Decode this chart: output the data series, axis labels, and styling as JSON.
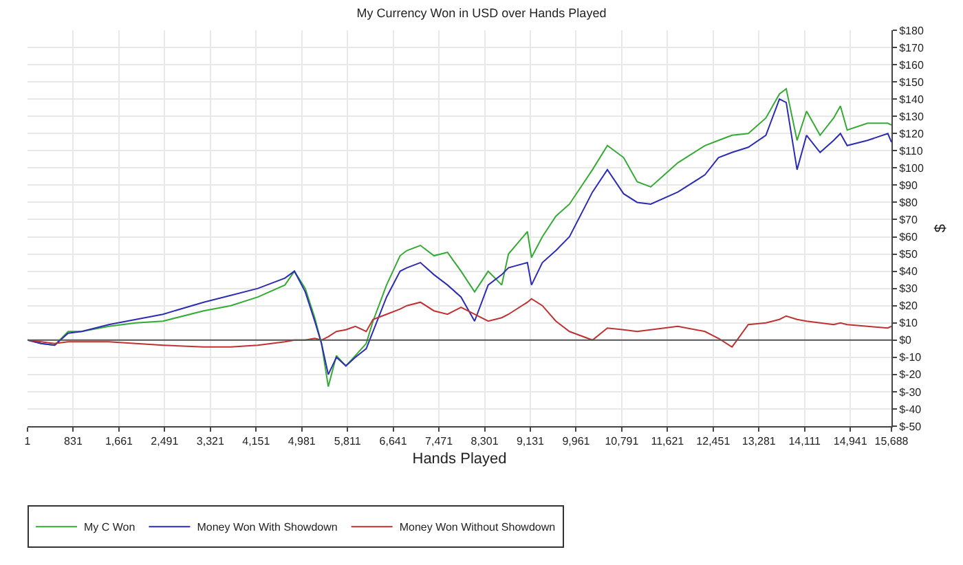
{
  "chart_data": {
    "type": "line",
    "title": "My Currency Won in USD over Hands Played",
    "xlabel": "Hands Played",
    "ylabel": "$",
    "x": [
      1,
      247,
      493,
      739,
      985,
      1477,
      1969,
      2461,
      3199,
      3691,
      4183,
      4675,
      4847,
      5044,
      5216,
      5339,
      5462,
      5610,
      5782,
      5954,
      6151,
      6274,
      6520,
      6766,
      6889,
      7135,
      7381,
      7627,
      7873,
      8119,
      8365,
      8611,
      8734,
      9078,
      9152,
      9349,
      9595,
      9841,
      10259,
      10530,
      10825,
      11071,
      11317,
      11809,
      12301,
      12547,
      12793,
      13088,
      13408,
      13654,
      13777,
      13974,
      14146,
      14392,
      14638,
      14761,
      14884,
      15253,
      15622,
      15688
    ],
    "series": [
      {
        "name": "My C Won",
        "color": "#33aa33",
        "values": [
          0,
          -2,
          -3,
          5,
          5,
          8,
          10,
          11,
          17,
          20,
          25,
          32,
          40,
          30,
          13,
          -2,
          -27,
          -9,
          -15,
          -9,
          -2,
          11,
          32,
          49,
          52,
          55,
          49,
          51,
          40,
          28,
          40,
          32,
          50,
          63,
          48,
          60,
          72,
          79,
          99,
          113,
          106,
          92,
          89,
          103,
          113,
          116,
          119,
          120,
          129,
          143,
          146,
          116,
          133,
          119,
          129,
          136,
          122,
          126,
          126,
          125
        ]
      },
      {
        "name": "Money Won With Showdown",
        "color": "#2b2bb5",
        "values": [
          0,
          -2,
          -3,
          4,
          5,
          9,
          12,
          15,
          22,
          26,
          30,
          36,
          40,
          28,
          11,
          -2,
          -20,
          -10,
          -15,
          -10,
          -5,
          5,
          25,
          40,
          42,
          45,
          38,
          32,
          25,
          11,
          32,
          38,
          42,
          45,
          32,
          45,
          52,
          60,
          86,
          99,
          85,
          80,
          79,
          86,
          96,
          106,
          109,
          112,
          119,
          140,
          138,
          99,
          119,
          109,
          116,
          120,
          113,
          116,
          120,
          115
        ]
      },
      {
        "name": "Money Won Without Showdown",
        "color": "#c03030",
        "values": [
          0,
          -1,
          -2,
          -1,
          -1,
          -1,
          -2,
          -3,
          -4,
          -4,
          -3,
          -1,
          0,
          0,
          1,
          0,
          2,
          5,
          6,
          8,
          5,
          12,
          15,
          18,
          20,
          22,
          17,
          15,
          19,
          15,
          11,
          13,
          15,
          22,
          24,
          20,
          11,
          5,
          0,
          7,
          6,
          5,
          6,
          8,
          5,
          1,
          -4,
          9,
          10,
          12,
          14,
          12,
          11,
          10,
          9,
          10,
          9,
          8,
          7,
          8
        ]
      }
    ],
    "xlim": [
      1,
      15688
    ],
    "xticks": [
      {
        "value": 1,
        "label": "1"
      },
      {
        "value": 831,
        "label": "831"
      },
      {
        "value": 1661,
        "label": "1,661"
      },
      {
        "value": 2491,
        "label": "2,491"
      },
      {
        "value": 3321,
        "label": "3,321"
      },
      {
        "value": 4151,
        "label": "4,151"
      },
      {
        "value": 4981,
        "label": "4,981"
      },
      {
        "value": 5811,
        "label": "5,811"
      },
      {
        "value": 6641,
        "label": "6,641"
      },
      {
        "value": 7471,
        "label": "7,471"
      },
      {
        "value": 8301,
        "label": "8,301"
      },
      {
        "value": 9131,
        "label": "9,131"
      },
      {
        "value": 9961,
        "label": "9,961"
      },
      {
        "value": 10791,
        "label": "10,791"
      },
      {
        "value": 11621,
        "label": "11,621"
      },
      {
        "value": 12451,
        "label": "12,451"
      },
      {
        "value": 13281,
        "label": "13,281"
      },
      {
        "value": 14111,
        "label": "14,111"
      },
      {
        "value": 14941,
        "label": "14,941"
      },
      {
        "value": 15688,
        "label": "15,688"
      }
    ],
    "ylim": [
      -50,
      180
    ],
    "yticks": [
      {
        "value": -50,
        "label": "$-50"
      },
      {
        "value": -40,
        "label": "$-40"
      },
      {
        "value": -30,
        "label": "$-30"
      },
      {
        "value": -20,
        "label": "$-20"
      },
      {
        "value": -10,
        "label": "$-10"
      },
      {
        "value": 0,
        "label": "$0"
      },
      {
        "value": 10,
        "label": "$10"
      },
      {
        "value": 20,
        "label": "$20"
      },
      {
        "value": 30,
        "label": "$30"
      },
      {
        "value": 40,
        "label": "$40"
      },
      {
        "value": 50,
        "label": "$50"
      },
      {
        "value": 60,
        "label": "$60"
      },
      {
        "value": 70,
        "label": "$70"
      },
      {
        "value": 80,
        "label": "$80"
      },
      {
        "value": 90,
        "label": "$90"
      },
      {
        "value": 100,
        "label": "$100"
      },
      {
        "value": 110,
        "label": "$110"
      },
      {
        "value": 120,
        "label": "$120"
      },
      {
        "value": 130,
        "label": "$130"
      },
      {
        "value": 140,
        "label": "$140"
      },
      {
        "value": 150,
        "label": "$150"
      },
      {
        "value": 160,
        "label": "$160"
      },
      {
        "value": 170,
        "label": "$170"
      },
      {
        "value": 180,
        "label": "$180"
      }
    ],
    "ref_lines": [
      {
        "axis": "y",
        "value": 0,
        "color": "#555555",
        "line_style": "solid"
      }
    ],
    "grid": true,
    "legend": "bottom left",
    "marker": "none",
    "line_style": "solid"
  }
}
